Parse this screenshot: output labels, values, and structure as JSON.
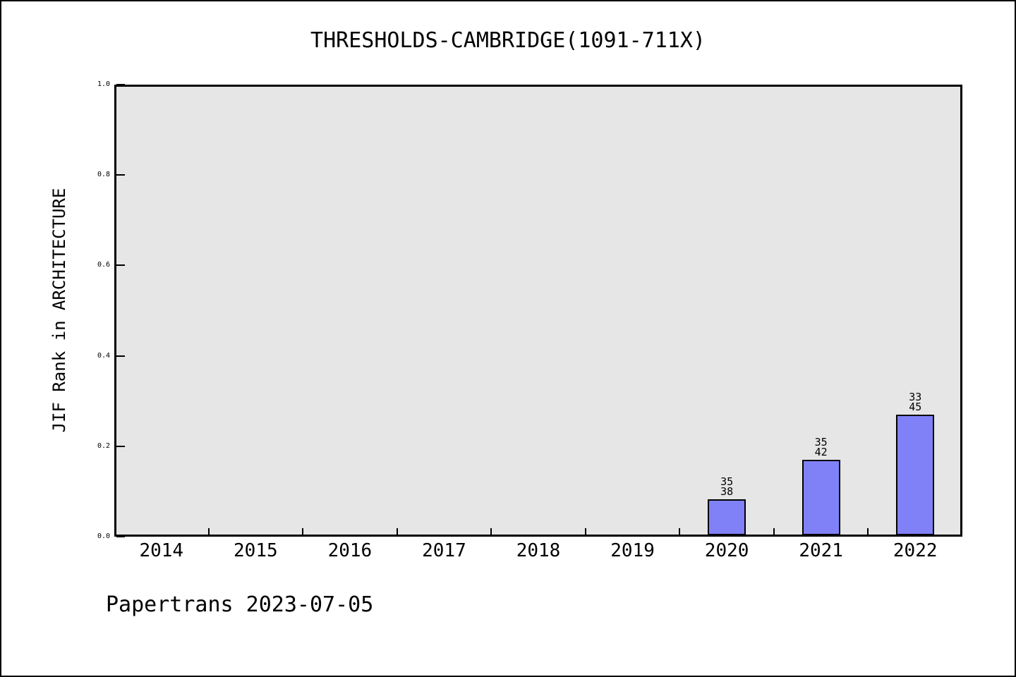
{
  "title": "THRESHOLDS-CAMBRIDGE(1091-711X)",
  "ylabel": "JIF Rank in ARCHITECTURE",
  "footer": "Papertrans 2023-07-05",
  "colors": {
    "bar_fill": "#8181f7",
    "bar_edge": "#000000",
    "plot_bg": "#e6e6e6",
    "frame": "#000000",
    "page_bg": "#ffffff",
    "text": "#000000"
  },
  "chart_data": {
    "type": "bar",
    "title": "THRESHOLDS-CAMBRIDGE(1091-711X)",
    "xlabel": "",
    "ylabel": "JIF Rank in ARCHITECTURE",
    "categories": [
      "2014",
      "2015",
      "2016",
      "2017",
      "2018",
      "2019",
      "2020",
      "2021",
      "2022"
    ],
    "ylim": [
      0.0,
      1.0
    ],
    "yticks": [
      "0.0",
      "0.2",
      "0.4",
      "0.6",
      "0.8",
      "1.0"
    ],
    "ytick_values": [
      0.0,
      0.2,
      0.4,
      0.6,
      0.8,
      1.0
    ],
    "grid": false,
    "legend": false,
    "series": [
      {
        "name": "JIF Rank in ARCHITECTURE (rank/total, bar height = 1 - rank/total)",
        "points": [
          {
            "year": "2020",
            "rank": 35,
            "total": 38,
            "value": 0.0789,
            "label_line1": "35",
            "label_line2": "38"
          },
          {
            "year": "2021",
            "rank": 35,
            "total": 42,
            "value": 0.1667,
            "label_line1": "35",
            "label_line2": "42"
          },
          {
            "year": "2022",
            "rank": 33,
            "total": 45,
            "value": 0.2667,
            "label_line1": "33",
            "label_line2": "45"
          }
        ]
      }
    ]
  }
}
